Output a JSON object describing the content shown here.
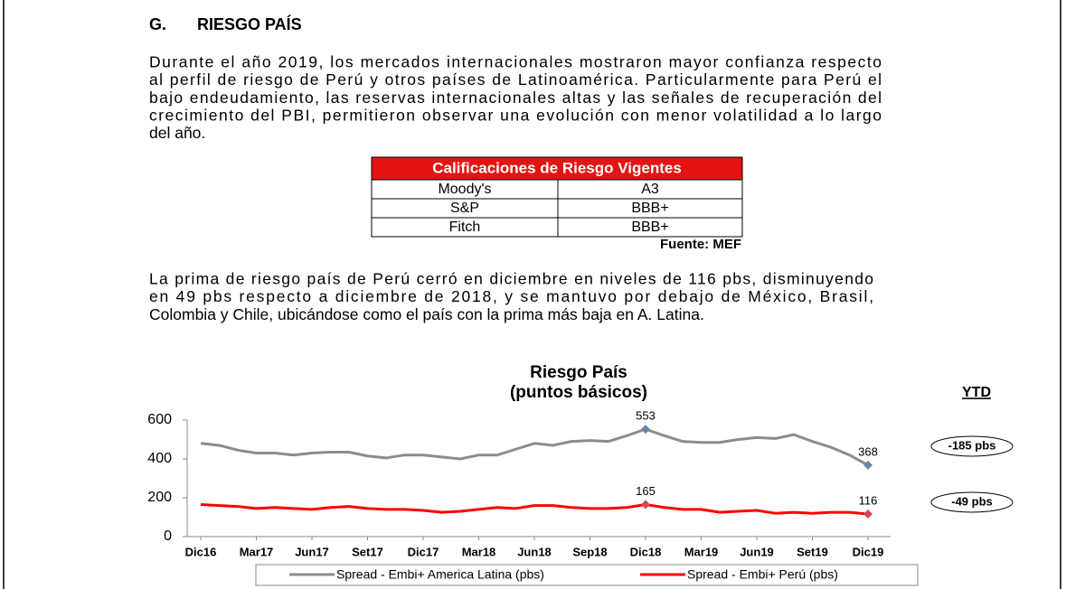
{
  "document": {
    "heading": {
      "letter": "G.",
      "title": "RIESGO PAÍS"
    },
    "paragraph1": [
      "Durante el año 2019, los mercados internacionales mostraron mayor confianza respecto",
      "al perfil de riesgo de Perú y otros países de Latinoamérica. Particularmente para Perú el",
      "bajo endeudamiento, las reservas internacionales altas y las señales de recuperación del",
      "crecimiento del PBI, permitieron observar una evolución con menor volatilidad a lo largo",
      "del año."
    ],
    "table": {
      "title": "Calificaciones de Riesgo Vigentes",
      "rows": [
        [
          "Moody's",
          "A3"
        ],
        [
          "S&P",
          "BBB+"
        ],
        [
          "Fitch",
          "BBB+"
        ]
      ],
      "source": "Fuente: MEF"
    },
    "paragraph2": [
      "La prima de riesgo país de Perú cerró en diciembre en niveles de 116 pbs, disminuyendo",
      "en  49 pbs respecto a diciembre de 2018, y se mantuvo por debajo de México, Brasil,",
      "Colombia y Chile, ubicándose como el país con la prima más baja en A. Latina."
    ]
  },
  "chart_data": {
    "type": "line",
    "title": "Riesgo País",
    "subtitle": "(puntos básicos)",
    "ytd_title": "YTD",
    "ytd_labels": [
      "-185 pbs",
      "-49 pbs"
    ],
    "categories": [
      "Dic16",
      null,
      null,
      "Mar17",
      null,
      null,
      "Jun17",
      null,
      null,
      "Set17",
      null,
      null,
      "Dic17",
      null,
      null,
      "Mar18",
      null,
      null,
      "Jun18",
      null,
      null,
      "Sep18",
      null,
      null,
      "Dic18",
      null,
      null,
      "Mar19",
      null,
      null,
      "Jun19",
      null,
      null,
      "Set19",
      null,
      null,
      "Dic19"
    ],
    "series": [
      {
        "name": "Spread - Embi+ America Latina (pbs)",
        "color": "#8c8c8c",
        "values": [
          480,
          470,
          445,
          430,
          430,
          420,
          430,
          435,
          435,
          415,
          405,
          420,
          420,
          410,
          400,
          420,
          420,
          450,
          480,
          470,
          490,
          495,
          490,
          520,
          553,
          520,
          490,
          485,
          485,
          500,
          510,
          505,
          525,
          490,
          460,
          420,
          368
        ],
        "labeled": [
          24,
          36
        ]
      },
      {
        "name": "Spread - Embi+ Perú (pbs)",
        "color": "#ff0000",
        "values": [
          165,
          160,
          155,
          145,
          150,
          145,
          140,
          150,
          155,
          145,
          140,
          140,
          135,
          125,
          130,
          140,
          150,
          145,
          160,
          160,
          150,
          145,
          145,
          150,
          165,
          150,
          140,
          140,
          125,
          130,
          135,
          120,
          125,
          120,
          125,
          125,
          116
        ],
        "labeled": [
          24,
          36
        ]
      }
    ],
    "ylim": [
      0,
      600
    ],
    "yticks": [
      0,
      200,
      400,
      600
    ],
    "grid": false
  }
}
